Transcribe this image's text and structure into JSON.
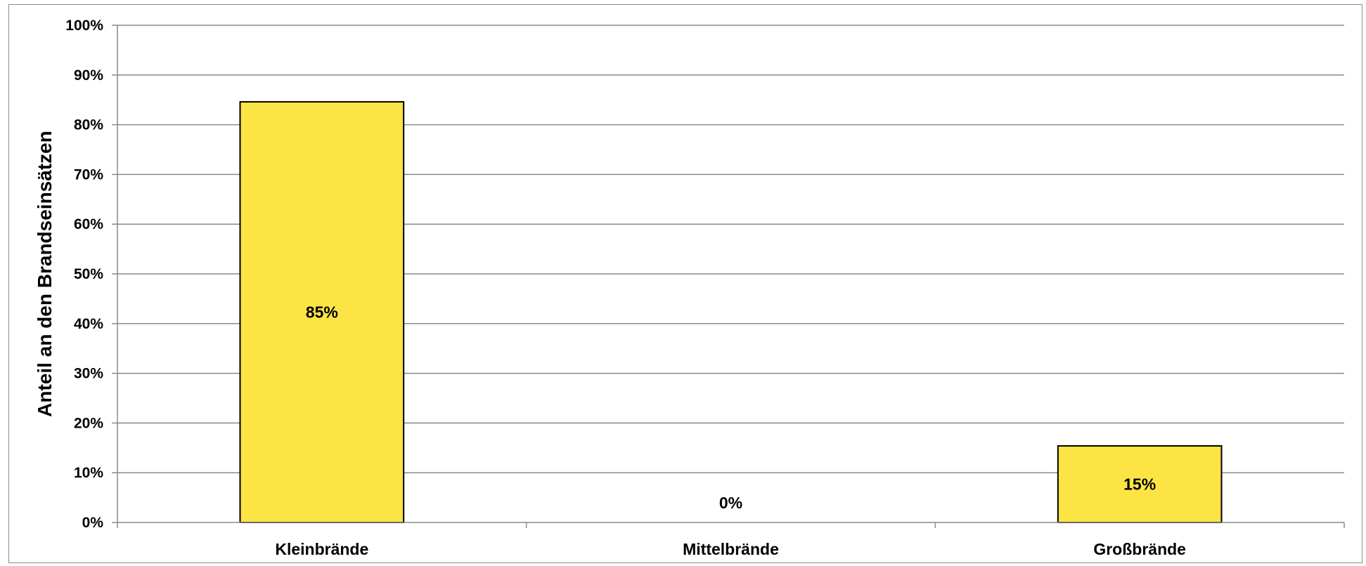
{
  "chart_data": {
    "type": "bar",
    "categories": [
      "Kleinbrände",
      "Mittelbrände",
      "Großbrände"
    ],
    "values": [
      84.6,
      0,
      15.4
    ],
    "data_labels": [
      "85%",
      "0%",
      "15%"
    ],
    "title": "",
    "xlabel": "",
    "ylabel": "Anteil an den Brandseinsätzen",
    "ylim": [
      0,
      100
    ],
    "yticks": [
      "0%",
      "10%",
      "20%",
      "30%",
      "40%",
      "50%",
      "60%",
      "70%",
      "80%",
      "90%",
      "100%"
    ],
    "grid": true,
    "legend": "none",
    "bar_color": "#fce444",
    "bar_border": "#000000",
    "gridline_color": "#8a8a8a"
  }
}
